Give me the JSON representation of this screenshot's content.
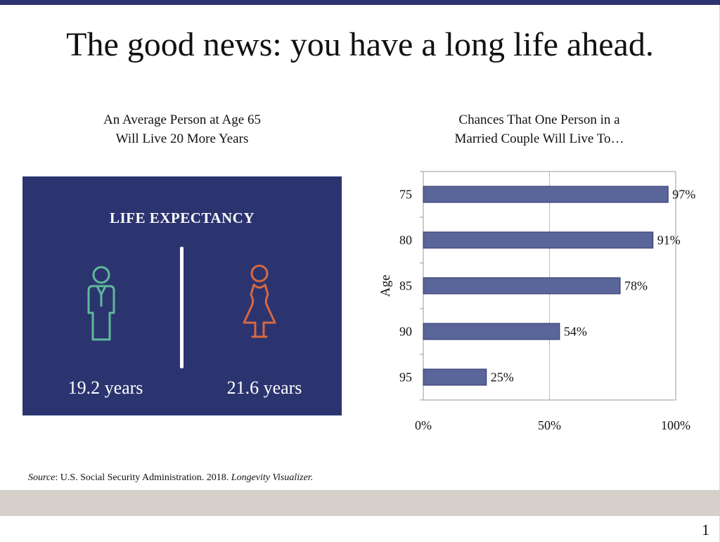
{
  "slide": {
    "title": "The good news: you have a long life ahead.",
    "page_number": "1",
    "colors": {
      "accent": "#2d3470",
      "panel": "#2c3470",
      "bar": "#5a6599",
      "male_icon": "#5fb89a",
      "female_icon": "#d8683e",
      "footer": "#d6d0cb"
    }
  },
  "left_panel": {
    "title_line1": "An Average Person at Age 65",
    "title_line2": "Will Live 20 More Years",
    "heading": "LIFE EXPECTANCY",
    "male_icon": "male-person-icon",
    "female_icon": "female-person-icon",
    "male_value": "19.2 years",
    "female_value": "21.6 years"
  },
  "right_panel": {
    "title_line1": "Chances That One Person in a",
    "title_line2": "Married Couple Will Live To…"
  },
  "chart_data": {
    "type": "bar",
    "orientation": "horizontal",
    "categories": [
      "75",
      "80",
      "85",
      "90",
      "95"
    ],
    "values": [
      97,
      91,
      78,
      54,
      25
    ],
    "data_labels": [
      "97%",
      "91%",
      "78%",
      "54%",
      "25%"
    ],
    "ylabel": "Age",
    "xlabel": "",
    "xlim": [
      0,
      100
    ],
    "x_ticks": [
      "0%",
      "50%",
      "100%"
    ],
    "x_tick_values": [
      0,
      50,
      100
    ],
    "grid": "vertical"
  },
  "source": {
    "label": "Source",
    "text": ": U.S. Social Security Administration. 2018. ",
    "publication": "Longevity Visualizer."
  }
}
